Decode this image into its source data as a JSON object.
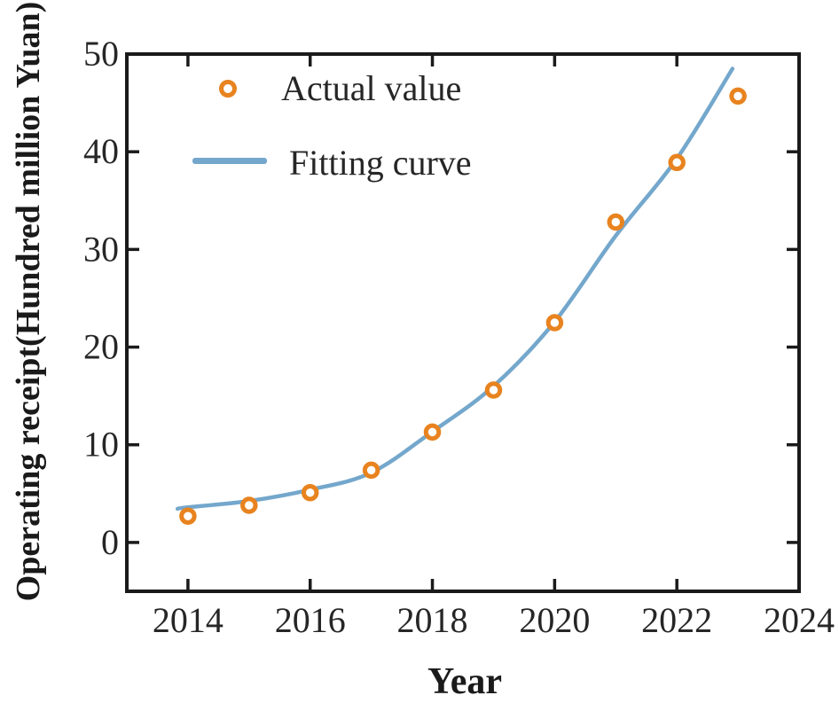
{
  "page": {
    "background": "#ffffff"
  },
  "legend": {
    "items": [
      {
        "label": "Actual value",
        "marker": "open-circle"
      },
      {
        "label": "Fitting curve",
        "marker": "line"
      }
    ]
  },
  "chart_data": {
    "type": "scatter",
    "title": "",
    "xlabel": "Year",
    "ylabel": "Operating receipt(Hundred million Yuan)",
    "xlim": [
      2013,
      2024
    ],
    "ylim": [
      -5,
      50
    ],
    "x_ticks": [
      2014,
      2016,
      2018,
      2020,
      2022,
      2024
    ],
    "y_ticks": [
      0,
      10,
      20,
      30,
      40,
      50
    ],
    "grid": false,
    "legend_position": "upper-left",
    "axis_color": "#1a1a1a",
    "text_color": "#262626",
    "series": [
      {
        "name": "Actual value",
        "type": "scatter",
        "color": "#E8831F",
        "marker": "open-circle",
        "x": [
          2014,
          2015,
          2016,
          2017,
          2018,
          2019,
          2020,
          2021,
          2022,
          2023
        ],
        "y": [
          2.7,
          3.8,
          5.1,
          7.4,
          11.3,
          15.6,
          22.5,
          32.8,
          38.9,
          45.7
        ]
      },
      {
        "name": "Fitting curve",
        "type": "line",
        "color": "#74A7CC",
        "points": [
          [
            2013.83,
            3.45
          ],
          [
            2014,
            3.6
          ],
          [
            2015,
            4.25
          ],
          [
            2016,
            5.4
          ],
          [
            2017,
            7.15
          ],
          [
            2018,
            11.35
          ],
          [
            2019,
            16.0
          ],
          [
            2020,
            22.6
          ],
          [
            2021,
            31.4
          ],
          [
            2022,
            39.3
          ],
          [
            2022.91,
            48.5
          ]
        ]
      }
    ]
  }
}
